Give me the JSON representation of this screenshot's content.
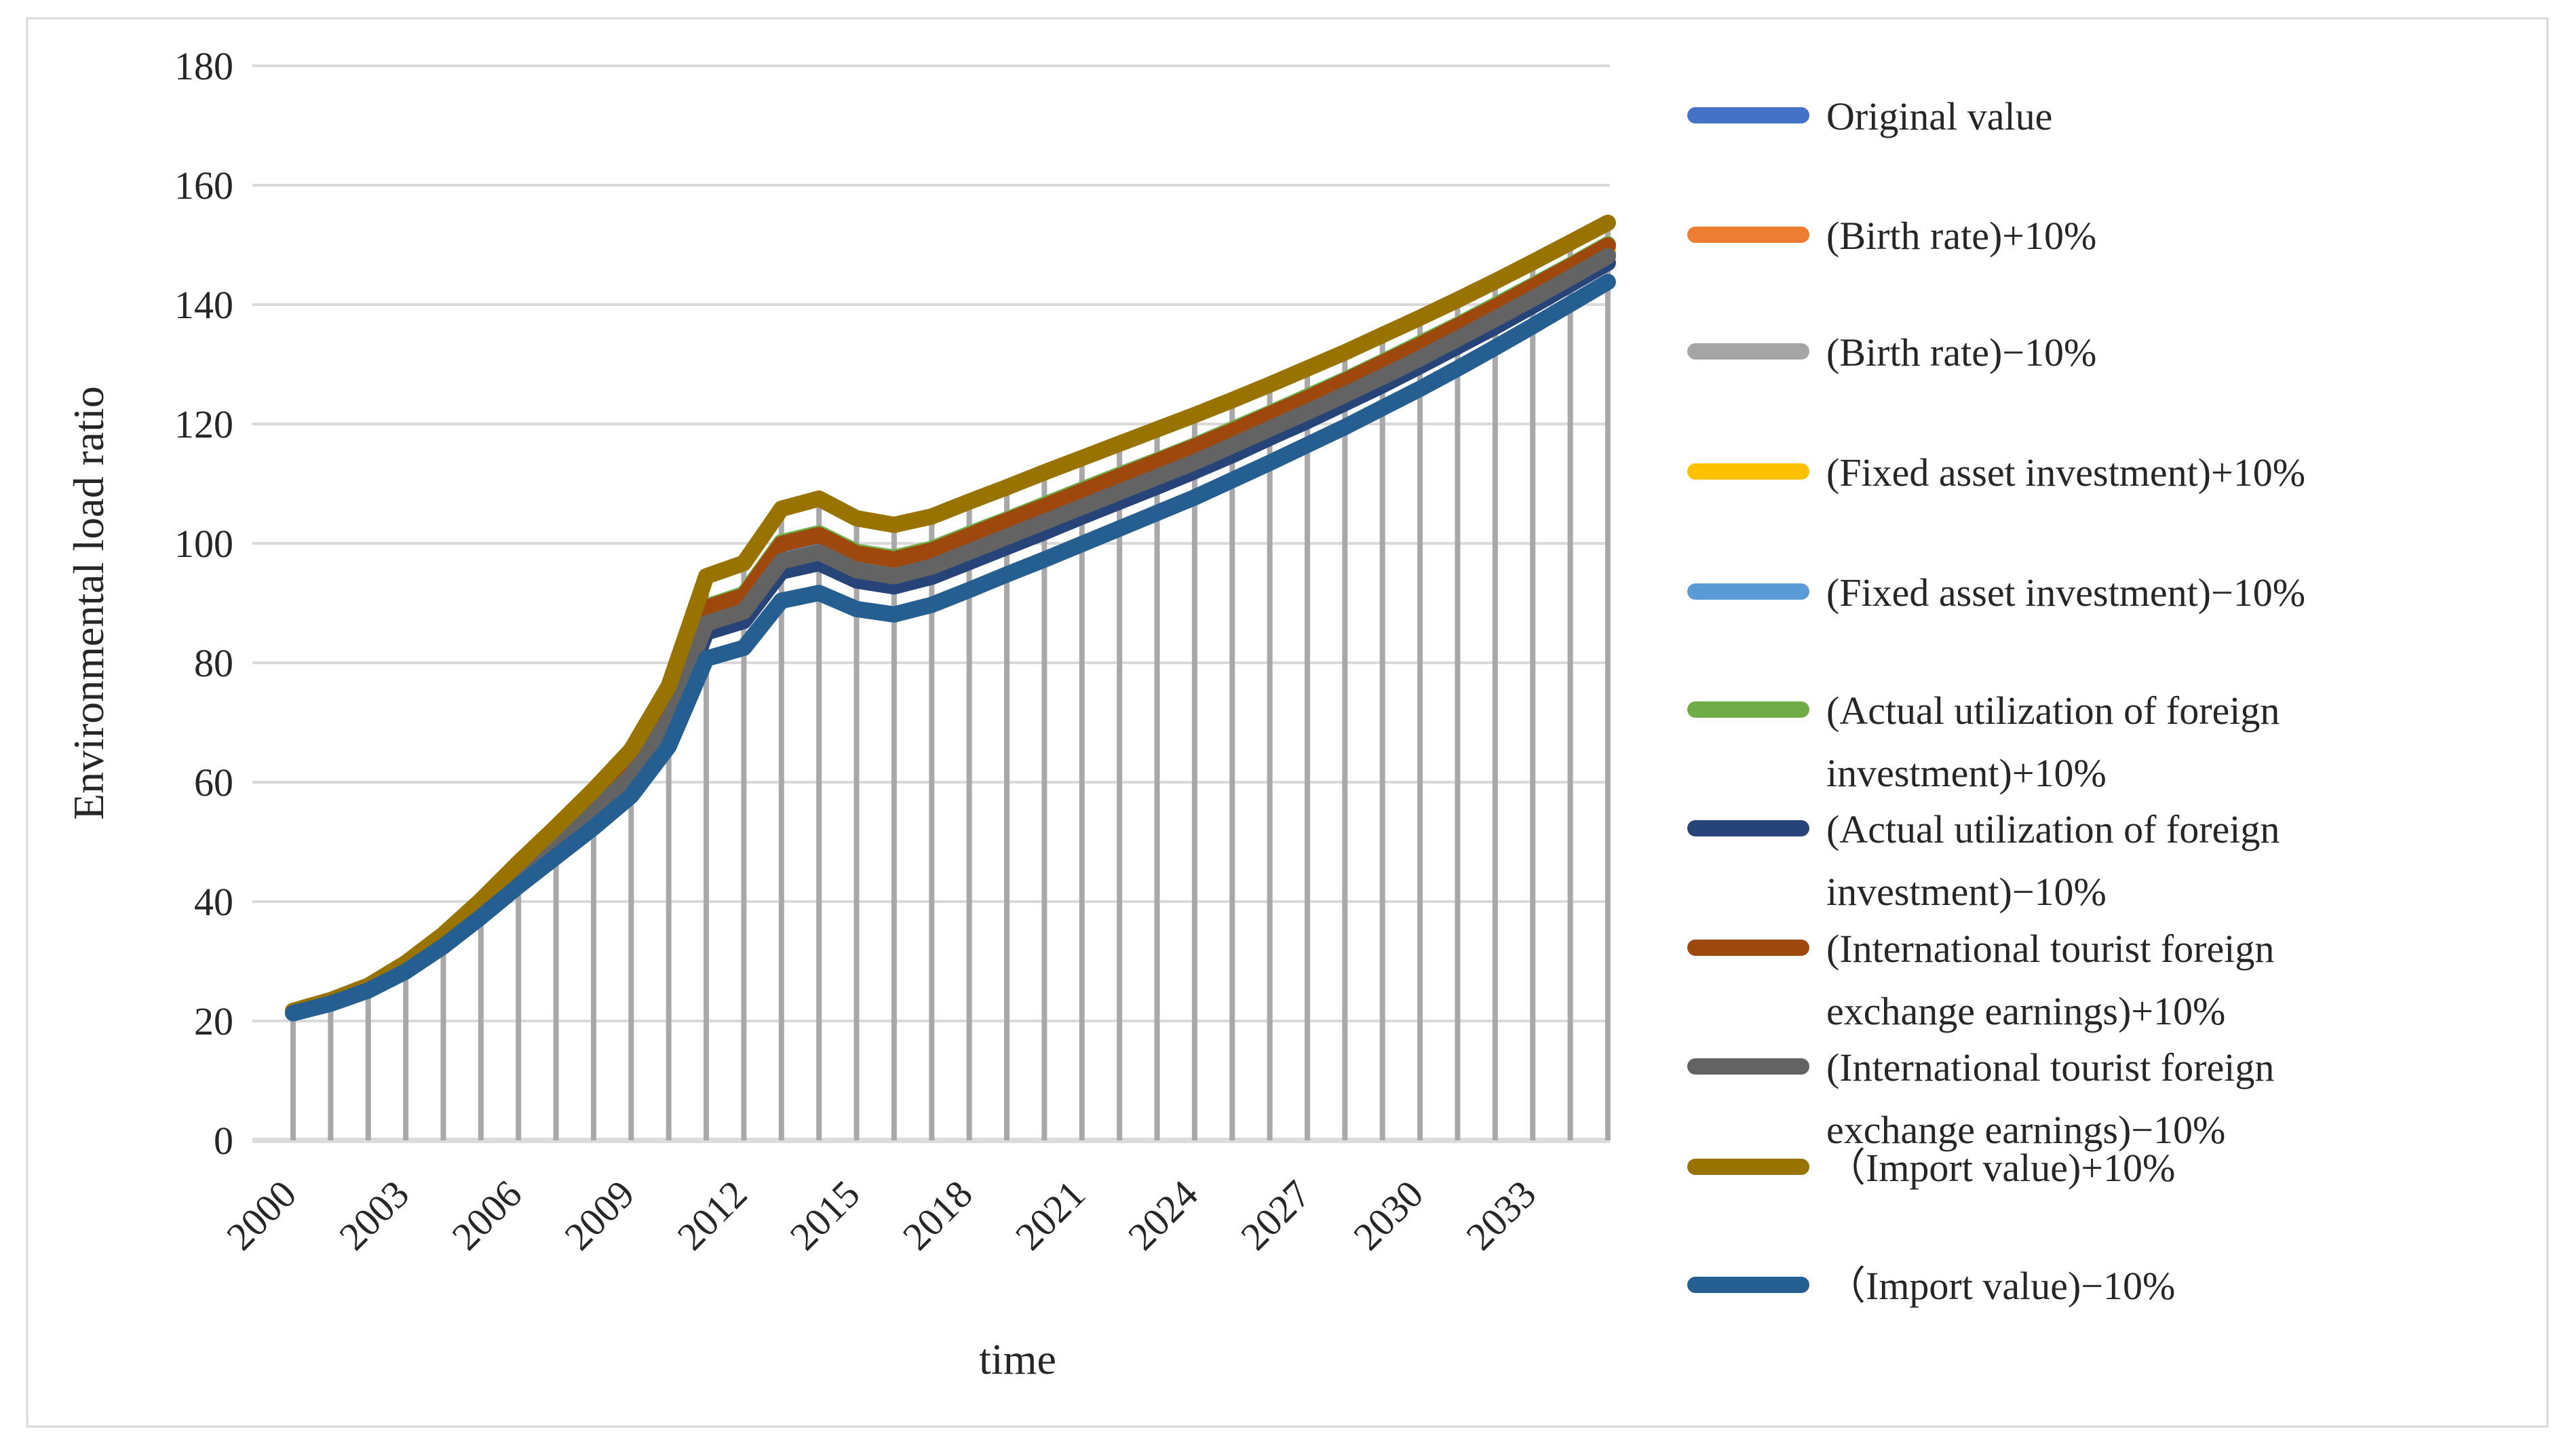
{
  "figure": {
    "background": "#ffffff",
    "border_color": "#d9d9d9"
  },
  "chart_data": {
    "type": "line",
    "title": "",
    "xlabel": "time",
    "ylabel": "Environmental load ratio",
    "x": [
      2000,
      2001,
      2002,
      2003,
      2004,
      2005,
      2006,
      2007,
      2008,
      2009,
      2010,
      2011,
      2012,
      2013,
      2014,
      2015,
      2016,
      2017,
      2018,
      2019,
      2020,
      2021,
      2022,
      2023,
      2024,
      2025,
      2026,
      2027,
      2028,
      2029,
      2030,
      2031,
      2032,
      2033,
      2034,
      2035
    ],
    "x_tick_labels": [
      "2000",
      "2003",
      "2006",
      "2009",
      "2012",
      "2015",
      "2018",
      "2021",
      "2024",
      "2027",
      "2030",
      "2033"
    ],
    "x_label_step": 3,
    "ylim": [
      0,
      180
    ],
    "y_ticks": [
      0,
      20,
      40,
      60,
      80,
      100,
      120,
      140,
      160,
      180
    ],
    "grid": "horizontal-only",
    "has_droplines": true,
    "gridline_color": "#d9d9d9",
    "axisline_color": "#dcdcdc",
    "dropline_color": "#a8a8a8",
    "text_color": "#262626",
    "legend_position": "right",
    "series": [
      {
        "name": "Original value",
        "legend_lines": [
          "Original value"
        ],
        "color": "#4472C4",
        "values": [
          21.5,
          23.2,
          25.5,
          29.0,
          33.5,
          38.8,
          44.5,
          50.0,
          55.5,
          61.5,
          71.0,
          87.5,
          89.5,
          98.0,
          99.5,
          96.5,
          95.5,
          97.0,
          99.5,
          102.0,
          104.5,
          107.0,
          109.5,
          112.0,
          114.5,
          117.2,
          120.0,
          122.8,
          125.7,
          128.7,
          131.8,
          135.0,
          138.3,
          141.7,
          145.2,
          148.7
        ]
      },
      {
        "name": "(Birth rate)+10%",
        "legend_lines": [
          "(Birth rate)+10%"
        ],
        "color": "#ED7D31",
        "values": [
          21.5,
          23.2,
          25.6,
          29.1,
          33.7,
          39.0,
          44.8,
          50.4,
          56.0,
          62.1,
          71.8,
          88.6,
          90.6,
          99.2,
          100.7,
          97.7,
          96.6,
          98.1,
          100.6,
          103.1,
          105.6,
          108.1,
          110.6,
          113.1,
          115.5,
          118.2,
          121.0,
          123.8,
          126.7,
          129.6,
          132.7,
          135.9,
          139.1,
          142.5,
          146.0,
          149.4
        ]
      },
      {
        "name": "(Birth rate)−10%",
        "legend_lines": [
          "(Birth rate)−10%"
        ],
        "color": "#A5A5A5",
        "values": [
          21.5,
          23.2,
          25.5,
          29.0,
          33.4,
          38.7,
          44.4,
          49.9,
          55.3,
          61.3,
          70.7,
          87.2,
          89.1,
          97.6,
          99.1,
          96.1,
          95.1,
          96.6,
          99.1,
          101.6,
          104.1,
          106.6,
          109.1,
          111.6,
          114.2,
          116.9,
          119.7,
          122.5,
          125.4,
          128.4,
          131.5,
          134.7,
          138.0,
          141.4,
          144.9,
          148.5
        ]
      },
      {
        "name": "(Fixed asset investment)+10%",
        "legend_lines": [
          "(Fixed asset investment)+10%"
        ],
        "color": "#FFC000",
        "values": [
          21.5,
          23.2,
          25.6,
          29.1,
          33.6,
          39.0,
          44.7,
          50.3,
          55.9,
          61.9,
          71.6,
          88.3,
          90.3,
          98.9,
          100.4,
          97.4,
          96.4,
          97.8,
          100.3,
          102.8,
          105.3,
          107.8,
          110.3,
          112.8,
          115.3,
          118.0,
          120.7,
          123.5,
          126.4,
          129.4,
          132.5,
          135.7,
          138.9,
          142.3,
          145.8,
          149.3
        ]
      },
      {
        "name": "(Fixed asset investment)−10%",
        "legend_lines": [
          "(Fixed asset investment)−10%"
        ],
        "color": "#5B9BD5",
        "values": [
          21.5,
          23.2,
          25.5,
          28.9,
          33.4,
          38.7,
          44.3,
          49.8,
          55.2,
          61.2,
          70.6,
          86.9,
          88.9,
          97.3,
          98.8,
          95.8,
          94.8,
          96.3,
          98.8,
          101.4,
          103.9,
          106.4,
          108.9,
          111.4,
          113.9,
          116.6,
          119.4,
          122.2,
          125.1,
          128.2,
          131.3,
          134.5,
          137.8,
          141.2,
          144.7,
          148.3
        ]
      },
      {
        "name": "(Actual utilization of foreign investment)+10%",
        "legend_lines": [
          "(Actual utilization of foreign",
          "investment)+10%"
        ],
        "color": "#70AD47",
        "values": [
          21.5,
          23.3,
          25.6,
          29.2,
          33.8,
          39.2,
          45.0,
          50.7,
          56.4,
          62.6,
          72.4,
          89.4,
          91.5,
          100.2,
          101.7,
          98.6,
          97.6,
          99.1,
          101.6,
          104.0,
          106.5,
          109.0,
          111.5,
          113.9,
          116.4,
          119.1,
          121.8,
          124.6,
          127.4,
          130.4,
          133.5,
          136.6,
          139.9,
          143.2,
          146.6,
          150.1
        ]
      },
      {
        "name": "(Actual utilization of foreign investment)−10%",
        "legend_lines": [
          "(Actual utilization of foreign",
          "investment)−10%"
        ],
        "color": "#264478",
        "values": [
          21.4,
          23.1,
          25.3,
          28.8,
          33.1,
          38.3,
          43.8,
          49.1,
          54.4,
          60.1,
          69.2,
          85.1,
          87.0,
          95.3,
          96.7,
          93.8,
          92.8,
          94.4,
          96.9,
          99.4,
          101.9,
          104.5,
          107.0,
          109.5,
          112.1,
          114.8,
          117.7,
          120.5,
          123.5,
          126.5,
          129.7,
          133.0,
          136.3,
          139.8,
          143.4,
          147.0
        ]
      },
      {
        "name": "(International tourist foreign exchange earnings)+10%",
        "legend_lines": [
          "(International tourist foreign",
          "exchange earnings)+10%"
        ],
        "color": "#9E480E",
        "values": [
          21.5,
          23.3,
          25.6,
          29.2,
          33.7,
          39.1,
          45.0,
          50.6,
          56.3,
          62.4,
          72.2,
          89.2,
          91.2,
          99.9,
          101.4,
          98.3,
          97.3,
          98.8,
          101.3,
          103.8,
          106.2,
          108.7,
          111.2,
          113.7,
          116.2,
          118.8,
          121.6,
          124.3,
          127.2,
          130.2,
          133.2,
          136.4,
          139.6,
          143.0,
          146.4,
          149.9
        ]
      },
      {
        "name": "(International tourist foreign exchange earnings)−10%",
        "legend_lines": [
          "(International tourist foreign",
          "exchange earnings)−10%"
        ],
        "color": "#636363",
        "values": [
          21.5,
          23.2,
          25.4,
          28.9,
          33.4,
          38.6,
          44.3,
          49.7,
          55.1,
          61.0,
          70.4,
          86.6,
          88.6,
          97.0,
          98.5,
          95.5,
          94.5,
          96.1,
          98.6,
          101.1,
          103.6,
          106.1,
          108.6,
          111.1,
          113.6,
          116.4,
          119.2,
          122.0,
          124.9,
          127.9,
          131.0,
          134.3,
          137.6,
          141.0,
          144.5,
          148.1
        ]
      },
      {
        "name": "（Import value)+10%",
        "legend_lines": [
          "（Import value)+10%"
        ],
        "color": "#997300",
        "values": [
          21.7,
          23.5,
          25.9,
          29.7,
          34.5,
          40.2,
          46.5,
          52.5,
          58.7,
          65.4,
          76.1,
          94.5,
          96.7,
          105.8,
          107.5,
          104.2,
          103.1,
          104.5,
          107.0,
          109.4,
          111.9,
          114.3,
          116.7,
          119.1,
          121.5,
          124.0,
          126.6,
          129.3,
          132.0,
          134.9,
          137.8,
          140.8,
          143.9,
          147.1,
          150.4,
          153.7
        ]
      },
      {
        "name": "（Import value)−10%",
        "legend_lines": [
          "（Import value)−10%"
        ],
        "color": "#255E91",
        "values": [
          21.3,
          22.9,
          25.1,
          28.3,
          32.5,
          37.4,
          42.6,
          47.5,
          52.4,
          57.7,
          66.0,
          80.7,
          82.5,
          90.4,
          91.7,
          89.0,
          88.1,
          89.7,
          92.2,
          94.8,
          97.3,
          99.9,
          102.5,
          105.1,
          107.7,
          110.6,
          113.5,
          116.5,
          119.5,
          122.7,
          125.9,
          129.3,
          132.8,
          136.4,
          140.1,
          143.8
        ]
      }
    ]
  }
}
